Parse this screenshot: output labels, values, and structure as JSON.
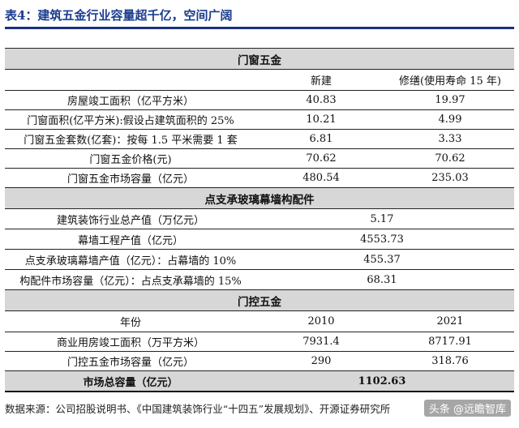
{
  "title": "表4：建筑五金行业容量超千亿，空间广阔",
  "sections": {
    "door_window": {
      "header": "门窗五金",
      "col1": "新建",
      "col2": "修缮(使用寿命 15 年)",
      "rows": [
        {
          "label": "房屋竣工面积（亿平方米）",
          "v1": "40.83",
          "v2": "19.97"
        },
        {
          "label": "门窗面积(亿平方米):假设占建筑面积的 25%",
          "v1": "10.21",
          "v2": "4.99"
        },
        {
          "label": "门窗五金套数(亿套)：按每 1.5 平米需要 1 套",
          "v1": "6.81",
          "v2": "3.33"
        },
        {
          "label": "门窗五金价格(元)",
          "v1": "70.62",
          "v2": "70.62"
        },
        {
          "label": "门窗五金市场容量（亿元）",
          "v1": "480.54",
          "v2": "235.03"
        }
      ]
    },
    "curtain": {
      "header": "点支承玻璃幕墙构配件",
      "rows": [
        {
          "label": "建筑装饰行业总产值（万亿元）",
          "v": "5.17"
        },
        {
          "label": "幕墙工程产值（亿元）",
          "v": "4553.73"
        },
        {
          "label": "点支承玻璃幕墙产值（亿元）：占幕墙的 10%",
          "v": "455.37"
        },
        {
          "label": "构配件市场容量（亿元）：占点支承幕墙的 15%",
          "v": "68.31"
        }
      ]
    },
    "door_control": {
      "header": "门控五金",
      "col_label": "年份",
      "col1": "2010",
      "col2": "2021",
      "rows": [
        {
          "label": "商业用房竣工面积（万平方米）",
          "v1": "7931.4",
          "v2": "8717.91"
        },
        {
          "label": "门控五金市场容量（亿元）",
          "v1": "290",
          "v2": "318.76"
        }
      ]
    }
  },
  "total": {
    "label": "市场总容量（亿元）",
    "value": "1102.63"
  },
  "source": "数据来源：公司招股说明书、《中国建筑装饰行业“十四五”发展规划》、开源证券研究所",
  "watermark": "头条 @远瞻智库"
}
